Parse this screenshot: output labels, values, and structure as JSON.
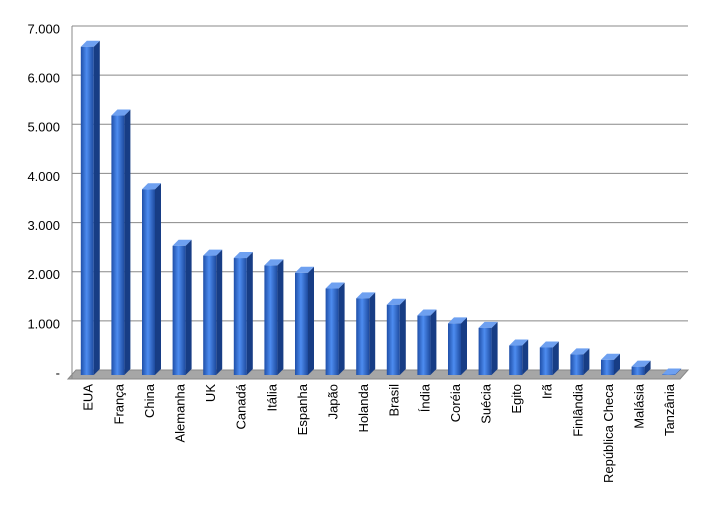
{
  "chart_data": {
    "type": "bar",
    "categories": [
      "EUA",
      "França",
      "China",
      "Alemanha",
      "UK",
      "Canadá",
      "Itália",
      "Espanha",
      "Japão",
      "Holanda",
      "Brasil",
      "Índia",
      "Coréia",
      "Suécia",
      "Egito",
      "Irã",
      "Finlândia",
      "República Checa",
      "Malásia",
      "Tanzânia"
    ],
    "values": [
      6700,
      5300,
      3800,
      2650,
      2450,
      2400,
      2250,
      2100,
      1780,
      1580,
      1450,
      1230,
      1070,
      980,
      620,
      580,
      440,
      330,
      190,
      30
    ],
    "color": "#2f6fd6",
    "ylim": [
      0,
      7000
    ],
    "yticks": [
      {
        "value": 0,
        "label": "-"
      },
      {
        "value": 1000,
        "label": "1.000"
      },
      {
        "value": 2000,
        "label": "2.000"
      },
      {
        "value": 3000,
        "label": "3.000"
      },
      {
        "value": 4000,
        "label": "4.000"
      },
      {
        "value": 5000,
        "label": "5.000"
      },
      {
        "value": 6000,
        "label": "6.000"
      },
      {
        "value": 7000,
        "label": "7.000"
      }
    ],
    "grid": true
  }
}
